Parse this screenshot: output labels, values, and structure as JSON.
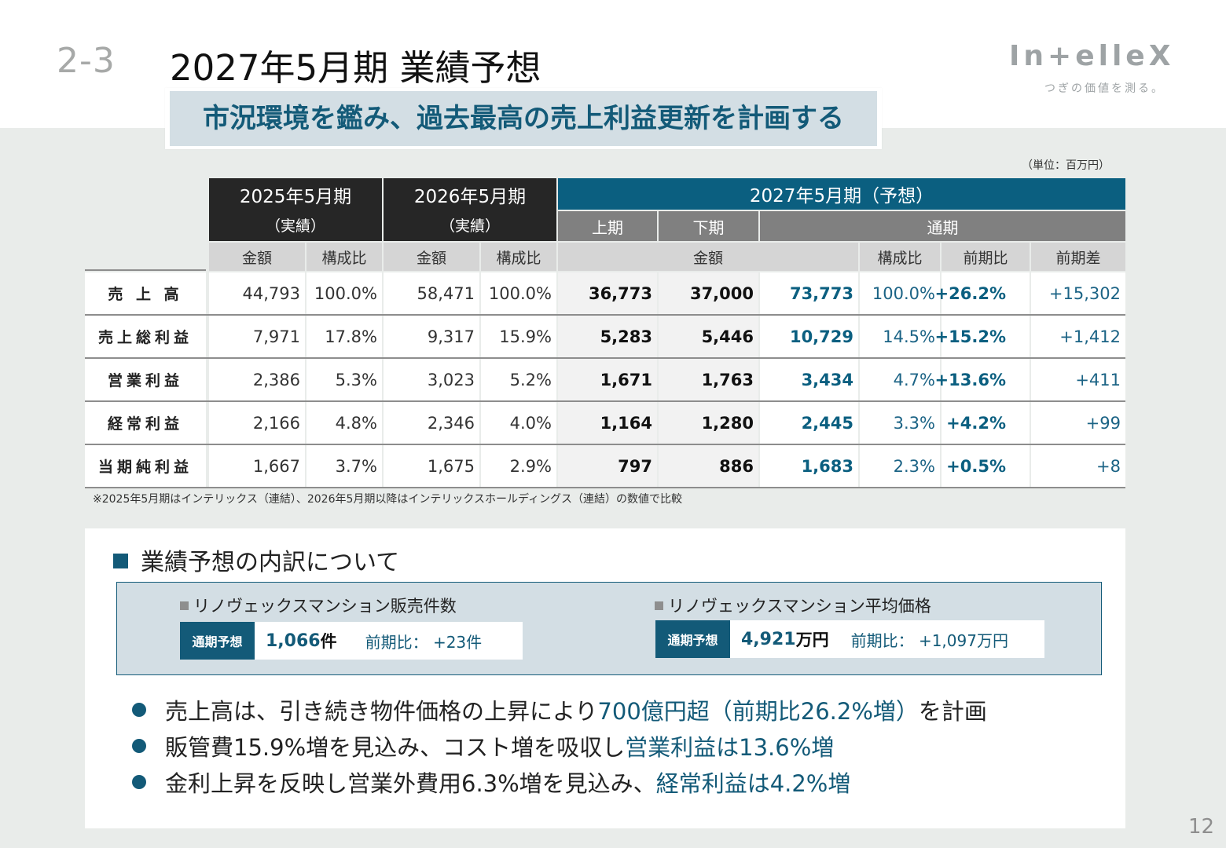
{
  "section_number": "2-3",
  "title": "2027年5月期 業績予想",
  "logo": {
    "text": "In+elleX",
    "tagline": "つぎの価値を測る。"
  },
  "banner": "市況環境を鑑み、過去最高の売上利益更新を計画する",
  "unit_note": "（単位：百万円）",
  "table": {
    "period_2025": "2025年5月期",
    "period_2026": "2026年5月期",
    "actual": "（実績）",
    "period_2027": "2027年5月期（予想）",
    "h1": "上期",
    "h2": "下期",
    "fy": "通期",
    "amount": "金額",
    "ratio": "構成比",
    "yoy": "前期比",
    "diff": "前期差",
    "rows": [
      {
        "label": "売 上 高",
        "a25": "44,793",
        "r25": "100.0%",
        "a26": "58,471",
        "r26": "100.0%",
        "h1": "36,773",
        "h2": "37,000",
        "fy": "73,773",
        "rfy": "100.0%",
        "yoy": "+26.2%",
        "diff": "+15,302"
      },
      {
        "label": "売上総利益",
        "a25": "7,971",
        "r25": "17.8%",
        "a26": "9,317",
        "r26": "15.9%",
        "h1": "5,283",
        "h2": "5,446",
        "fy": "10,729",
        "rfy": "14.5%",
        "yoy": "+15.2%",
        "diff": "+1,412"
      },
      {
        "label": "営業利益",
        "a25": "2,386",
        "r25": "5.3%",
        "a26": "3,023",
        "r26": "5.2%",
        "h1": "1,671",
        "h2": "1,763",
        "fy": "3,434",
        "rfy": "4.7%",
        "yoy": "+13.6%",
        "diff": "+411"
      },
      {
        "label": "経常利益",
        "a25": "2,166",
        "r25": "4.8%",
        "a26": "2,346",
        "r26": "4.0%",
        "h1": "1,164",
        "h2": "1,280",
        "fy": "2,445",
        "rfy": "3.3%",
        "yoy": "+4.2%",
        "diff": "+99"
      },
      {
        "label": "当期純利益",
        "a25": "1,667",
        "r25": "3.7%",
        "a26": "1,675",
        "r26": "2.9%",
        "h1": "797",
        "h2": "886",
        "fy": "1,683",
        "rfy": "2.3%",
        "yoy": "+0.5%",
        "diff": "+8"
      }
    ]
  },
  "footnote": "※2025年5月期はインテリックス（連結）、2026年5月期以降はインテリックスホールディングス（連結）の数値で比較",
  "breakdown": {
    "heading": "業績予想の内訳について",
    "kpi1": {
      "title": "リノヴェックスマンション販売件数",
      "tag": "通期予想",
      "value": "1,066",
      "unit": "件",
      "comparison": "前期比： +23件"
    },
    "kpi2": {
      "title": "リノヴェックスマンション平均価格",
      "tag": "通期予想",
      "value": "4,921",
      "unit": "万円",
      "comparison": "前期比： +1,097万円"
    },
    "bullets": [
      {
        "text": "売上高は、引き続き物件価格の上昇により",
        "highlight": "700億円超（前期比26.2%増）",
        "tail": "を計画"
      },
      {
        "text": "販管費15.9%増を見込み、コスト増を吸収し",
        "highlight": "営業利益は13.6%増",
        "tail": ""
      },
      {
        "text": "金利上昇を反映し営業外費用6.3%増を見込み、",
        "highlight": "経常利益は4.2%増",
        "tail": ""
      }
    ]
  },
  "page_number": "12"
}
